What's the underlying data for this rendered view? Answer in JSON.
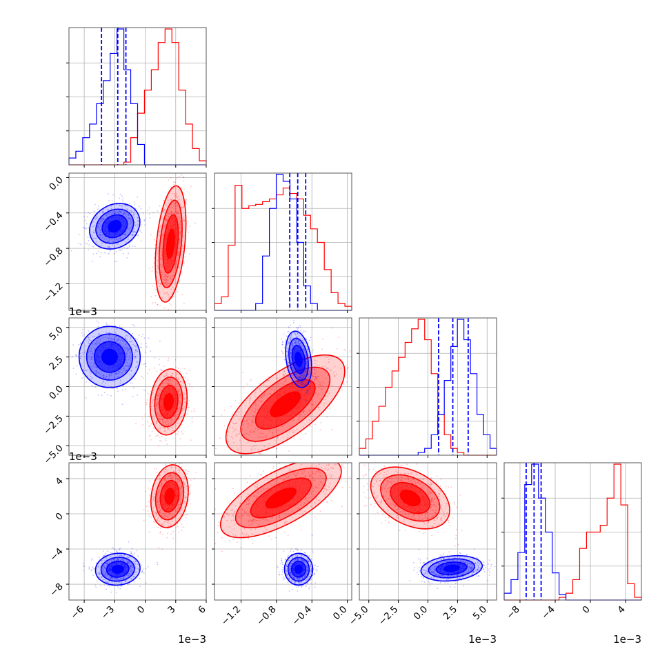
{
  "chart_data": {
    "type": "corner",
    "colors": {
      "run_a": "#0000ff",
      "run_b": "#ff0000",
      "grid": "#b0b0b0"
    },
    "grid": true,
    "quantile_style": "dashed",
    "variables": [
      {
        "range": [
          -7.5,
          6.0
        ],
        "ticks": [
          -6,
          -3,
          0,
          3,
          6
        ],
        "tick_labels": [
          "−6",
          "−3",
          "0",
          "3",
          "6"
        ],
        "multiplier_label": "1e−3",
        "hist_blue": [
          0.05,
          0.1,
          0.2,
          0.3,
          0.45,
          0.62,
          0.82,
          1.0,
          0.7,
          0.45,
          0.15,
          0,
          0,
          0,
          0,
          0,
          0,
          0,
          0,
          0
        ],
        "hist_red": [
          0,
          0,
          0,
          0,
          0,
          0,
          0,
          0,
          0.02,
          0.2,
          0.38,
          0.55,
          0.7,
          0.9,
          1.0,
          0.9,
          0.55,
          0.3,
          0.12,
          0.03
        ],
        "quantiles_blue": [
          -4.3,
          -2.7,
          -1.9
        ]
      },
      {
        "range": [
          -1.5,
          0.05
        ],
        "ticks": [
          -1.2,
          -0.8,
          -0.4,
          0.0
        ],
        "tick_labels": [
          "−1.2",
          "−0.8",
          "−0.4",
          "0.0"
        ],
        "multiplier_label": "1e−3",
        "hist_blue": [
          0,
          0,
          0,
          0,
          0,
          0,
          0.05,
          0.4,
          0.75,
          1.0,
          0.95,
          0.82,
          0.5,
          0.18,
          0.05,
          0,
          0,
          0,
          0,
          0
        ],
        "hist_red": [
          0.05,
          0.1,
          0.48,
          0.92,
          0.75,
          0.77,
          0.78,
          0.8,
          0.82,
          0.85,
          0.9,
          0.86,
          0.82,
          0.7,
          0.6,
          0.5,
          0.3,
          0.13,
          0.05,
          0.03
        ],
        "quantiles_blue": [
          -0.65,
          -0.56,
          -0.47
        ]
      },
      {
        "range": [
          -5.8,
          5.8
        ],
        "ticks": [
          -5.0,
          -2.5,
          0.0,
          2.5,
          5.0
        ],
        "tick_labels": [
          "−5.0",
          "−2.5",
          "0.0",
          "2.5",
          "5.0"
        ],
        "multiplier_label": "1e−3",
        "hist_blue": [
          0,
          0,
          0,
          0,
          0,
          0,
          0,
          0,
          0,
          0.02,
          0.05,
          0.15,
          0.3,
          0.55,
          0.8,
          1.0,
          0.85,
          0.6,
          0.3,
          0.15,
          0.05
        ],
        "hist_red": [
          0.05,
          0.12,
          0.25,
          0.36,
          0.5,
          0.62,
          0.72,
          0.83,
          0.93,
          1.0,
          0.85,
          0.6,
          0.3,
          0.15,
          0.05,
          0.02,
          0,
          0,
          0,
          0,
          0
        ],
        "quantiles_blue": [
          0.9,
          2.1,
          3.4
        ]
      },
      {
        "range": [
          -9.8,
          5.8
        ],
        "ticks": [
          -8,
          -4,
          0,
          4
        ],
        "tick_labels": [
          "−8",
          "−4",
          "0",
          "4"
        ],
        "multiplier_label": "1e−3",
        "hist_blue": [
          0.05,
          0.15,
          0.35,
          0.85,
          1.0,
          0.75,
          0.5,
          0.2,
          0.04,
          0,
          0,
          0,
          0,
          0,
          0,
          0,
          0,
          0,
          0,
          0
        ],
        "hist_red": [
          0,
          0,
          0,
          0,
          0,
          0,
          0,
          0,
          0.02,
          0.05,
          0.15,
          0.38,
          0.5,
          0.5,
          0.55,
          0.75,
          1.0,
          0.7,
          0.12,
          0.02
        ],
        "quantiles_blue": [
          -7.3,
          -6.4,
          -5.6
        ]
      }
    ],
    "pairs": [
      {
        "row": 1,
        "col": 0,
        "blue": {
          "mean": [
            -3.0,
            -0.55
          ],
          "sd": [
            1.3,
            0.12
          ],
          "angle": 0.55
        },
        "red": {
          "mean": [
            2.5,
            -0.75
          ],
          "sd": [
            0.7,
            0.33
          ],
          "angle": -0.1
        }
      },
      {
        "row": 2,
        "col": 0,
        "blue": {
          "mean": [
            -3.5,
            2.5
          ],
          "sd": [
            1.5,
            1.3
          ],
          "angle": 0.6
        },
        "red": {
          "mean": [
            2.3,
            -1.3
          ],
          "sd": [
            0.9,
            1.4
          ],
          "angle": -0.1
        }
      },
      {
        "row": 2,
        "col": 1,
        "blue": {
          "mean": [
            -0.55,
            2.3
          ],
          "sd": [
            0.07,
            1.2
          ],
          "angle": 0.15
        },
        "red": {
          "mean": [
            -0.7,
            -1.5
          ],
          "sd": [
            0.4,
            1.3
          ],
          "angle": 0.65
        }
      },
      {
        "row": 3,
        "col": 0,
        "blue": {
          "mean": [
            -2.7,
            -6.3
          ],
          "sd": [
            1.1,
            0.9
          ],
          "angle": 0.1
        },
        "red": {
          "mean": [
            2.4,
            2.0
          ],
          "sd": [
            0.9,
            1.8
          ],
          "angle": -0.15
        }
      },
      {
        "row": 3,
        "col": 1,
        "blue": {
          "mean": [
            -0.55,
            -6.3
          ],
          "sd": [
            0.08,
            0.9
          ],
          "angle": 0.0
        },
        "red": {
          "mean": [
            -0.75,
            1.8
          ],
          "sd": [
            0.38,
            1.5
          ],
          "angle": 0.5
        }
      },
      {
        "row": 3,
        "col": 2,
        "blue": {
          "mean": [
            2.0,
            -6.2
          ],
          "sd": [
            1.3,
            0.7
          ],
          "angle": 0.1
        },
        "red": {
          "mean": [
            -1.5,
            1.8
          ],
          "sd": [
            1.8,
            1.5
          ],
          "angle": -0.5
        }
      }
    ]
  }
}
